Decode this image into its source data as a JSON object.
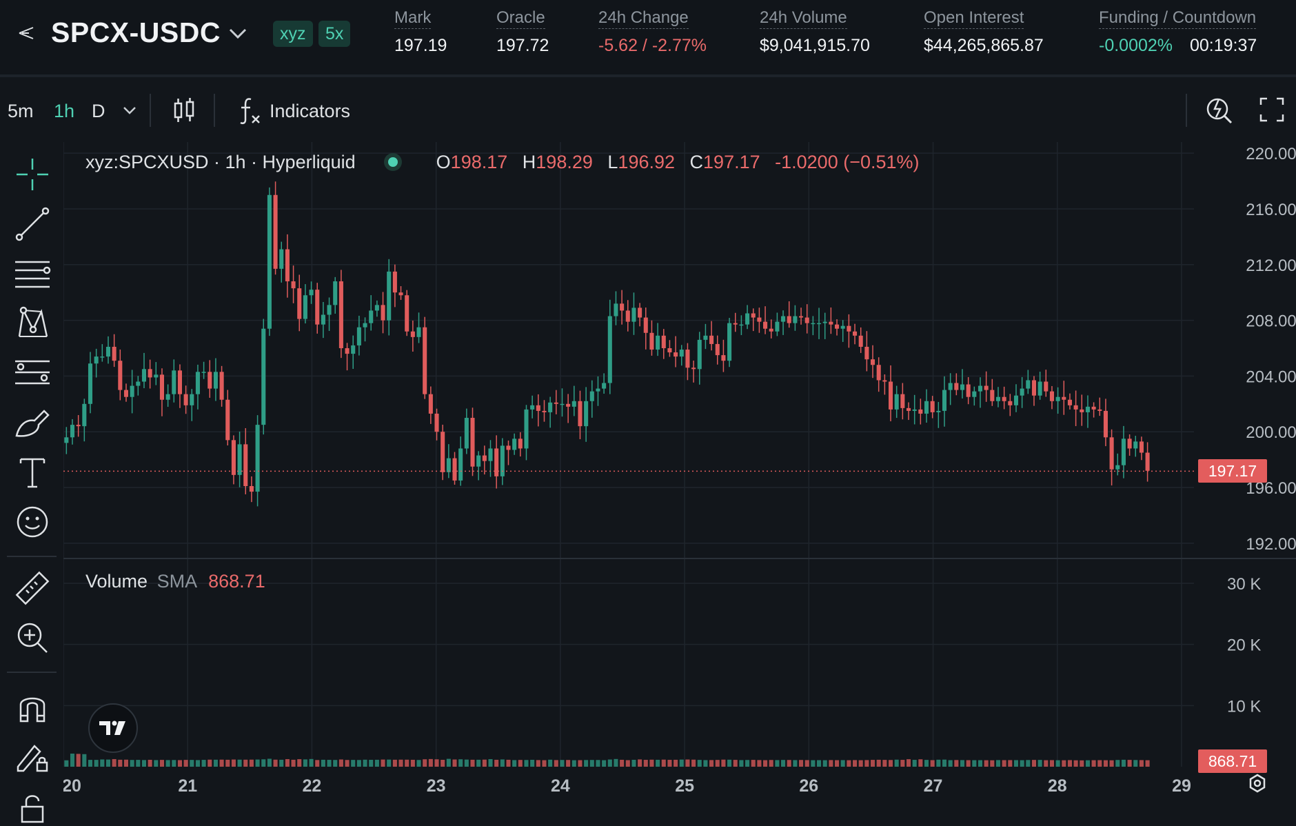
{
  "header": {
    "pair": "SPCX-USDC",
    "badges": [
      "xyz",
      "5x"
    ],
    "stats": [
      {
        "label": "Mark",
        "value": "197.19",
        "tone": ""
      },
      {
        "label": "Oracle",
        "value": "197.72",
        "tone": ""
      },
      {
        "label": "24h Change",
        "value": "-5.62 / -2.77%",
        "tone": "neg"
      },
      {
        "label": "24h Volume",
        "value": "$9,041,915.70",
        "tone": ""
      },
      {
        "label": "Open Interest",
        "value": "$44,265,865.87",
        "tone": ""
      },
      {
        "label": "Funding / Countdown",
        "value": "-0.0002%",
        "value2": "00:19:37",
        "tone": "pos"
      }
    ]
  },
  "toolbar": {
    "timeframes": [
      "5m",
      "1h",
      "D"
    ],
    "active_timeframe": "1h",
    "indicators_label": "Indicators"
  },
  "legend": {
    "symbol": "xyz:SPCXUSD · 1h · Hyperliquid",
    "o_label": "O",
    "o": "198.17",
    "h_label": "H",
    "h": "198.29",
    "l_label": "L",
    "l": "196.92",
    "c_label": "C",
    "c": "197.17",
    "change": "-1.0200 (−0.51%)"
  },
  "volume_legend": {
    "label": "Volume",
    "sma_label": "SMA",
    "sma_value": "868.71"
  },
  "colors": {
    "up": "#2f9e87",
    "down": "#e05c5c",
    "bg": "#12161b",
    "grid": "#1f252c",
    "accent": "#4fd1b3"
  },
  "chart_data": [
    {
      "type": "candlestick",
      "title": "xyz:SPCXUSD · 1h · Hyperliquid",
      "x_ticks": [
        "20",
        "21",
        "22",
        "23",
        "24",
        "25",
        "26",
        "27",
        "28",
        "29"
      ],
      "y_ticks": [
        "220.00",
        "216.00",
        "212.00",
        "208.00",
        "204.00",
        "200.00",
        "196.00",
        "192.00"
      ],
      "ylim": [
        191.2,
        220.8
      ],
      "xlim": [
        20,
        29.1
      ],
      "last_price": "197.17",
      "last_price_value": 197.17,
      "series": [
        {
          "close": [
            199.6,
            200.5,
            200.4,
            202.0,
            204.9,
            205.4,
            205.4,
            206.1,
            205.1,
            203.0,
            202.5,
            203.3,
            203.6,
            204.5,
            203.9,
            204.1,
            202.3,
            202.7,
            204.4,
            202.7,
            201.9,
            202.7,
            204.3,
            204.3,
            203.1,
            204.3,
            202.3,
            199.4,
            196.9,
            199.1,
            196.1,
            195.7,
            200.5,
            207.4,
            217.0,
            211.7,
            213.1,
            210.8,
            210.3,
            208.1,
            209.8,
            210.2,
            207.7,
            208.4,
            209.1,
            210.8,
            206.0,
            205.6,
            206.2,
            207.5,
            207.8,
            208.7,
            209.1,
            208.0,
            211.5,
            210.0,
            209.8,
            207.2,
            206.8,
            207.5,
            202.7,
            201.3,
            200.0,
            197.1,
            198.1,
            196.5,
            198.8,
            201.0,
            197.5,
            198.3,
            197.9,
            198.8,
            196.8,
            199.0,
            198.7,
            199.5,
            198.8,
            201.6,
            201.9,
            201.5,
            201.4,
            202.1,
            202.0,
            202.0,
            201.8,
            202.2,
            200.4,
            202.2,
            202.9,
            203.1,
            203.5,
            208.3,
            209.2,
            208.7,
            207.9,
            208.9,
            208.2,
            207.1,
            205.9,
            206.9,
            206.0,
            205.7,
            205.4,
            205.9,
            204.6,
            204.5,
            206.6,
            206.9,
            206.3,
            205.5,
            205.1,
            207.8,
            207.7,
            207.7,
            208.5,
            208.2,
            207.9,
            207.4,
            207.2,
            207.9,
            208.3,
            207.8,
            208.3,
            208.2,
            207.8,
            207.8,
            207.8,
            207.9,
            207.7,
            207.4,
            207.6,
            207.2,
            206.9,
            206.1,
            205.2,
            204.8,
            203.7,
            203.6,
            201.6,
            202.7,
            201.7,
            201.5,
            201.6,
            201.3,
            202.2,
            201.4,
            201.5,
            203.0,
            203.5,
            203.0,
            203.4,
            202.5,
            202.9,
            203.3,
            203.0,
            202.2,
            202.5,
            202.2,
            201.9,
            202.6,
            203.1,
            203.7,
            202.6,
            203.6,
            202.9,
            202.2,
            202.5,
            202.3,
            201.9,
            201.6,
            201.4,
            201.8,
            201.6,
            201.5,
            199.6,
            197.3,
            197.6,
            199.5,
            198.8,
            199.3,
            198.5,
            197.2
          ]
        }
      ]
    },
    {
      "type": "bar",
      "title": "Volume",
      "y_ticks": [
        "30 K",
        "20 K",
        "10 K"
      ],
      "ylim": [
        0,
        30000
      ],
      "sma": "868.71",
      "sma_value": 868.71,
      "series": [
        {
          "values": [
            1047,
            2142,
            2099,
            2057,
            1119,
            1116,
            1186,
            1170,
            1244,
            1142,
            1151,
            1104,
            1120,
            1089,
            1129,
            1083,
            1116,
            1085,
            1095,
            1078,
            1115,
            1110,
            1083,
            1119,
            1155,
            1144,
            1159,
            1136,
            1176,
            1156,
            1148,
            1157,
            1176,
            1209,
            1300,
            1153,
            1137,
            1237,
            1137,
            1230,
            1193,
            1261,
            1094,
            1136,
            1124,
            1105,
            1182,
            1103,
            1113,
            1099,
            1148,
            1128,
            1135,
            1172,
            1167,
            1140,
            1156,
            1149,
            1132,
            1101,
            1215,
            1256,
            1209,
            1128,
            1288,
            1180,
            1216,
            1167,
            1138,
            1139,
            1160,
            1239,
            1132,
            1191,
            1135,
            1082,
            1108,
            1101,
            1130,
            1085,
            1066,
            1148,
            1086,
            1105,
            1103,
            1061,
            1070,
            1093,
            1102,
            1100,
            1066,
            1177,
            1260,
            1133,
            1070,
            1130,
            1192,
            1124,
            1151,
            1133,
            1160,
            1123,
            1134,
            1169,
            1181,
            1155,
            1116,
            1078,
            1085,
            1110,
            1159,
            1149,
            1120,
            1078,
            1101,
            1117,
            1087,
            1069,
            1101,
            1082,
            1107,
            1102,
            1079,
            1101,
            1081,
            1066,
            1073,
            1063,
            1085,
            1070,
            1078,
            1062,
            1083,
            1063,
            1085,
            1118,
            1137,
            1116,
            1099,
            1155,
            1121,
            1227,
            1121,
            1213,
            1116,
            1073,
            1147,
            1162,
            1073,
            1093,
            1083,
            1071,
            1067,
            1071,
            1059,
            1051,
            1086,
            1073,
            1080,
            1077,
            1064,
            1096,
            1110,
            1113,
            1062,
            1075,
            1058,
            1056,
            1081,
            1048,
            1037,
            1054,
            1063,
            1072,
            1059,
            1049,
            1104,
            1138,
            1115,
            1095,
            1078,
            1061,
            1051,
            1048
          ]
        }
      ]
    }
  ]
}
